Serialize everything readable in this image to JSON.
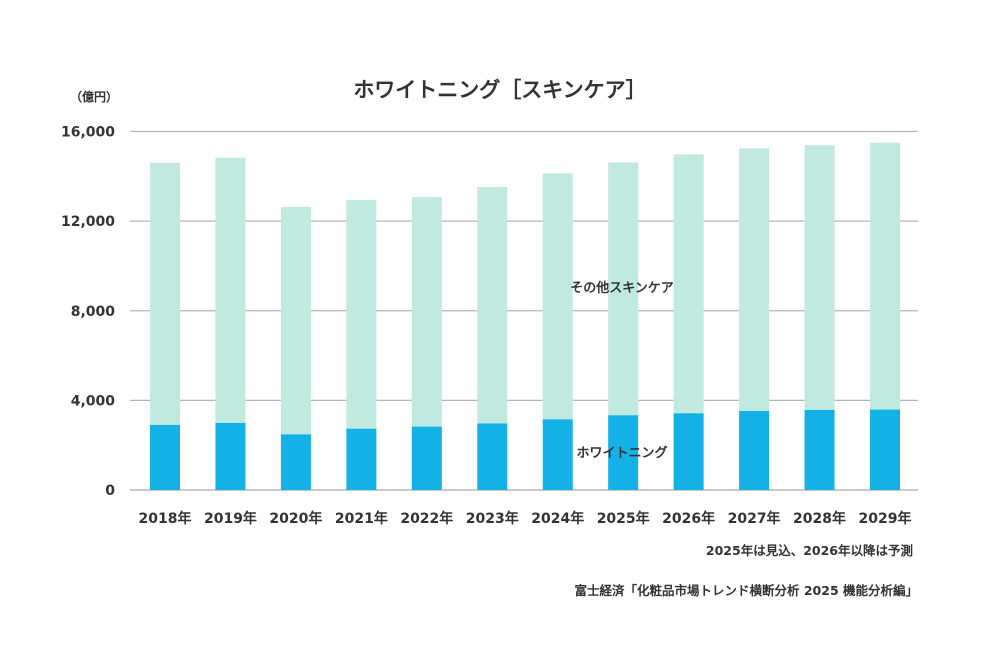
{
  "chart_data": {
    "type": "bar",
    "stacked": true,
    "title": "ホワイトニング［スキンケア］",
    "ylabel": "（億円）",
    "ylim": [
      0,
      16000
    ],
    "yticks": [
      "0",
      "4,000",
      "8,000",
      "12,000",
      "16,000"
    ],
    "ytick_values": [
      0,
      4000,
      8000,
      12000,
      16000
    ],
    "grid": true,
    "categories": [
      "2018年",
      "2019年",
      "2020年",
      "2021年",
      "2022年",
      "2023年",
      "2024年",
      "2025年",
      "2026年",
      "2027年",
      "2028年",
      "2029年"
    ],
    "series": [
      {
        "name": "ホワイトニング",
        "color": "#13b1e6",
        "values": [
          2910,
          3000,
          2490,
          2740,
          2830,
          2970,
          3160,
          3340,
          3430,
          3530,
          3580,
          3590
        ]
      },
      {
        "name": "その他スキンケア",
        "color": "#c0eadf",
        "values": [
          11690,
          11830,
          10150,
          10200,
          10240,
          10550,
          10970,
          11280,
          11550,
          11720,
          11810,
          11910
        ]
      }
    ],
    "totals": [
      14600,
      14830,
      12640,
      12940,
      13070,
      13520,
      14130,
      14620,
      14980,
      15250,
      15390,
      15500
    ],
    "notes": [
      "2025年は見込、2026年以降は予測",
      "富士経済「化粧品市場トレンド横断分析 2025 機能分析編」"
    ]
  }
}
